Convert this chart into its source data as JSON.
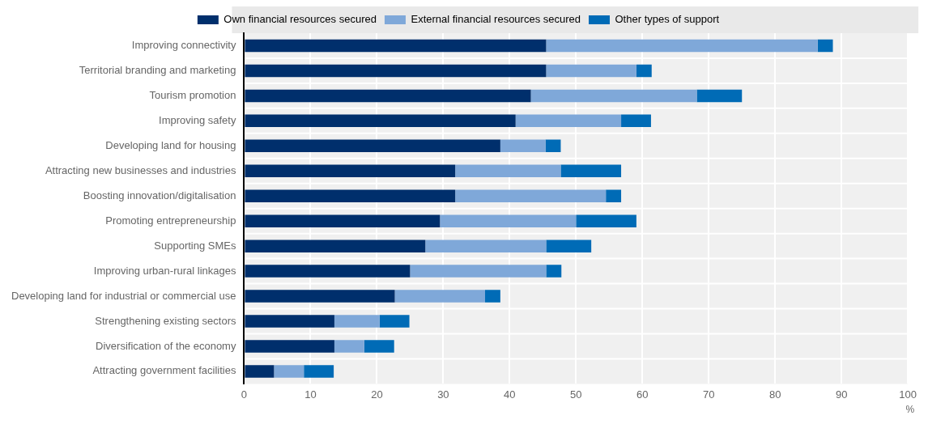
{
  "chart_data": {
    "type": "bar",
    "orientation": "horizontal",
    "stacked": true,
    "xlabel": "%",
    "categories": [
      "Improving connectivity",
      "Territorial branding and marketing",
      "Tourism promotion",
      "Improving safety",
      "Developing land for housing",
      "Attracting new businesses and industries",
      "Boosting innovation/digitalisation",
      "Promoting entrepreneurship",
      "Supporting SMEs",
      "Improving urban-rural linkages",
      "Developing land for industrial or commercial use",
      "Strengthening existing sectors",
      "Diversification of the economy",
      "Attracting government facilities"
    ],
    "series": [
      {
        "name": "Own financial resources secured",
        "color": "#002f6c",
        "values": [
          45.5,
          45.5,
          43.2,
          40.9,
          38.6,
          31.8,
          31.8,
          29.5,
          27.3,
          25,
          22.7,
          13.6,
          13.6,
          4.5
        ]
      },
      {
        "name": "External financial resources secured",
        "color": "#7fa8d9",
        "values": [
          40.9,
          13.6,
          25,
          15.9,
          6.8,
          15.9,
          22.7,
          20.5,
          18.2,
          20.5,
          13.6,
          6.8,
          4.5,
          4.5
        ]
      },
      {
        "name": "Other types of support",
        "color": "#006bb6",
        "values": [
          2.3,
          2.3,
          6.8,
          4.5,
          2.3,
          9.1,
          2.3,
          9.1,
          6.8,
          2.3,
          2.3,
          4.5,
          4.5,
          4.5
        ]
      }
    ],
    "xlim": [
      0,
      100
    ],
    "xticks": [
      0,
      10,
      20,
      30,
      40,
      50,
      60,
      70,
      80,
      90,
      100
    ],
    "grid": "x",
    "legend": "top"
  }
}
